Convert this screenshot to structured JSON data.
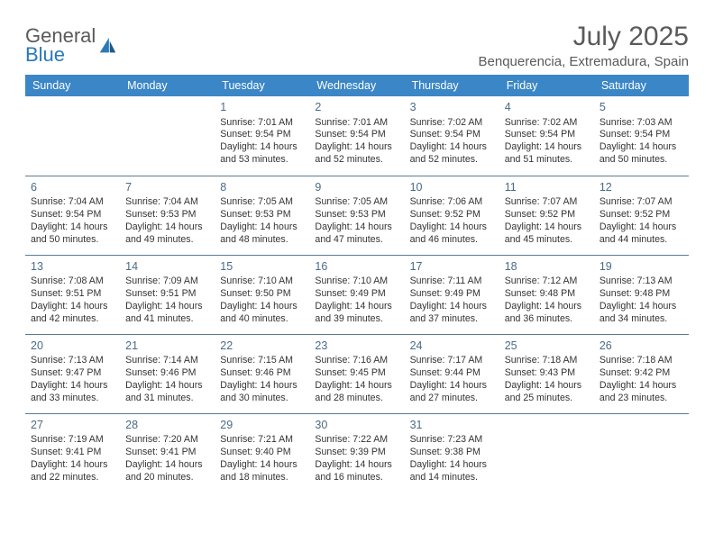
{
  "brand": {
    "line1": "General",
    "line2": "Blue",
    "logo_color": "#2a7ab8",
    "text_color": "#5a5a5a"
  },
  "title": {
    "month": "July 2025",
    "location": "Benquerencia, Extremadura, Spain"
  },
  "colors": {
    "header_bg": "#3b86c6",
    "header_text": "#ffffff",
    "border": "#5d7a94",
    "daynum": "#4a6b88",
    "body_text": "#333333"
  },
  "weekdays": [
    "Sunday",
    "Monday",
    "Tuesday",
    "Wednesday",
    "Thursday",
    "Friday",
    "Saturday"
  ],
  "weeks": [
    [
      null,
      null,
      {
        "n": "1",
        "sr": "7:01 AM",
        "ss": "9:54 PM",
        "dl": "14 hours and 53 minutes."
      },
      {
        "n": "2",
        "sr": "7:01 AM",
        "ss": "9:54 PM",
        "dl": "14 hours and 52 minutes."
      },
      {
        "n": "3",
        "sr": "7:02 AM",
        "ss": "9:54 PM",
        "dl": "14 hours and 52 minutes."
      },
      {
        "n": "4",
        "sr": "7:02 AM",
        "ss": "9:54 PM",
        "dl": "14 hours and 51 minutes."
      },
      {
        "n": "5",
        "sr": "7:03 AM",
        "ss": "9:54 PM",
        "dl": "14 hours and 50 minutes."
      }
    ],
    [
      {
        "n": "6",
        "sr": "7:04 AM",
        "ss": "9:54 PM",
        "dl": "14 hours and 50 minutes."
      },
      {
        "n": "7",
        "sr": "7:04 AM",
        "ss": "9:53 PM",
        "dl": "14 hours and 49 minutes."
      },
      {
        "n": "8",
        "sr": "7:05 AM",
        "ss": "9:53 PM",
        "dl": "14 hours and 48 minutes."
      },
      {
        "n": "9",
        "sr": "7:05 AM",
        "ss": "9:53 PM",
        "dl": "14 hours and 47 minutes."
      },
      {
        "n": "10",
        "sr": "7:06 AM",
        "ss": "9:52 PM",
        "dl": "14 hours and 46 minutes."
      },
      {
        "n": "11",
        "sr": "7:07 AM",
        "ss": "9:52 PM",
        "dl": "14 hours and 45 minutes."
      },
      {
        "n": "12",
        "sr": "7:07 AM",
        "ss": "9:52 PM",
        "dl": "14 hours and 44 minutes."
      }
    ],
    [
      {
        "n": "13",
        "sr": "7:08 AM",
        "ss": "9:51 PM",
        "dl": "14 hours and 42 minutes."
      },
      {
        "n": "14",
        "sr": "7:09 AM",
        "ss": "9:51 PM",
        "dl": "14 hours and 41 minutes."
      },
      {
        "n": "15",
        "sr": "7:10 AM",
        "ss": "9:50 PM",
        "dl": "14 hours and 40 minutes."
      },
      {
        "n": "16",
        "sr": "7:10 AM",
        "ss": "9:49 PM",
        "dl": "14 hours and 39 minutes."
      },
      {
        "n": "17",
        "sr": "7:11 AM",
        "ss": "9:49 PM",
        "dl": "14 hours and 37 minutes."
      },
      {
        "n": "18",
        "sr": "7:12 AM",
        "ss": "9:48 PM",
        "dl": "14 hours and 36 minutes."
      },
      {
        "n": "19",
        "sr": "7:13 AM",
        "ss": "9:48 PM",
        "dl": "14 hours and 34 minutes."
      }
    ],
    [
      {
        "n": "20",
        "sr": "7:13 AM",
        "ss": "9:47 PM",
        "dl": "14 hours and 33 minutes."
      },
      {
        "n": "21",
        "sr": "7:14 AM",
        "ss": "9:46 PM",
        "dl": "14 hours and 31 minutes."
      },
      {
        "n": "22",
        "sr": "7:15 AM",
        "ss": "9:46 PM",
        "dl": "14 hours and 30 minutes."
      },
      {
        "n": "23",
        "sr": "7:16 AM",
        "ss": "9:45 PM",
        "dl": "14 hours and 28 minutes."
      },
      {
        "n": "24",
        "sr": "7:17 AM",
        "ss": "9:44 PM",
        "dl": "14 hours and 27 minutes."
      },
      {
        "n": "25",
        "sr": "7:18 AM",
        "ss": "9:43 PM",
        "dl": "14 hours and 25 minutes."
      },
      {
        "n": "26",
        "sr": "7:18 AM",
        "ss": "9:42 PM",
        "dl": "14 hours and 23 minutes."
      }
    ],
    [
      {
        "n": "27",
        "sr": "7:19 AM",
        "ss": "9:41 PM",
        "dl": "14 hours and 22 minutes."
      },
      {
        "n": "28",
        "sr": "7:20 AM",
        "ss": "9:41 PM",
        "dl": "14 hours and 20 minutes."
      },
      {
        "n": "29",
        "sr": "7:21 AM",
        "ss": "9:40 PM",
        "dl": "14 hours and 18 minutes."
      },
      {
        "n": "30",
        "sr": "7:22 AM",
        "ss": "9:39 PM",
        "dl": "14 hours and 16 minutes."
      },
      {
        "n": "31",
        "sr": "7:23 AM",
        "ss": "9:38 PM",
        "dl": "14 hours and 14 minutes."
      },
      null,
      null
    ]
  ],
  "labels": {
    "sunrise": "Sunrise:",
    "sunset": "Sunset:",
    "daylight": "Daylight:"
  }
}
